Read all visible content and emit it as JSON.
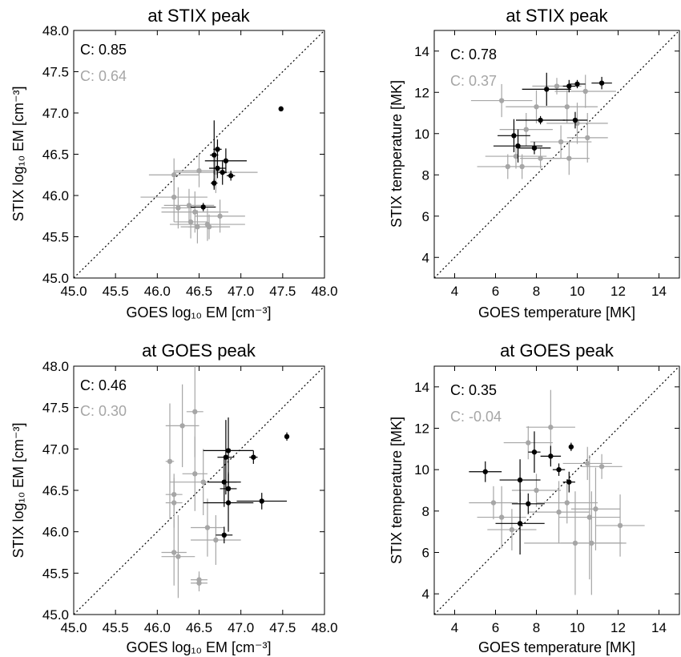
{
  "chart_data": [
    {
      "type": "scatter",
      "title": "at STIX peak",
      "xlabel": "GOES log₁₀ EM [cm⁻³]",
      "ylabel": "STIX log₁₀ EM [cm⁻³]",
      "xlim": [
        45.0,
        48.0
      ],
      "ylim": [
        45.0,
        48.0
      ],
      "xticks": [
        "45.0",
        "45.5",
        "46.0",
        "46.5",
        "47.0",
        "47.5",
        "48.0"
      ],
      "yticks": [
        "45.0",
        "45.5",
        "46.0",
        "46.5",
        "47.0",
        "47.5",
        "48.0"
      ],
      "annotations": [
        {
          "text": "C: 0.85",
          "color": "#000000"
        },
        {
          "text": "C: 0.64",
          "color": "#a6a6a6"
        }
      ],
      "diagonal": true,
      "series": [
        {
          "color": "#000000",
          "points": [
            {
              "x": 47.48,
              "y": 47.05,
              "xerr": 0.02,
              "yerr": 0.03
            },
            {
              "x": 46.72,
              "y": 46.56,
              "xerr": 0.05,
              "yerr": 0.12
            },
            {
              "x": 46.68,
              "y": 46.49,
              "xerr": 0.05,
              "yerr": 0.42
            },
            {
              "x": 46.82,
              "y": 46.42,
              "xerr": 0.25,
              "yerr": 0.15
            },
            {
              "x": 46.72,
              "y": 46.33,
              "xerr": 0.1,
              "yerr": 0.12
            },
            {
              "x": 46.88,
              "y": 46.24,
              "xerr": 0.05,
              "yerr": 0.06
            },
            {
              "x": 46.78,
              "y": 46.28,
              "xerr": 0.05,
              "yerr": 0.15
            },
            {
              "x": 46.68,
              "y": 46.15,
              "xerr": 0.04,
              "yerr": 0.05
            },
            {
              "x": 46.55,
              "y": 45.86,
              "xerr": 0.15,
              "yerr": 0.05
            }
          ]
        },
        {
          "color": "#a6a6a6",
          "points": [
            {
              "x": 46.5,
              "y": 46.3,
              "xerr": 0.3,
              "yerr": 0.2
            },
            {
              "x": 46.7,
              "y": 46.28,
              "xerr": 0.5,
              "yerr": 0.25
            },
            {
              "x": 46.2,
              "y": 46.25,
              "xerr": 0.3,
              "yerr": 0.2
            },
            {
              "x": 46.2,
              "y": 45.98,
              "xerr": 0.4,
              "yerr": 0.3
            },
            {
              "x": 46.38,
              "y": 45.88,
              "xerr": 0.3,
              "yerr": 0.2
            },
            {
              "x": 46.25,
              "y": 45.85,
              "xerr": 0.2,
              "yerr": 0.25
            },
            {
              "x": 46.45,
              "y": 45.8,
              "xerr": 0.4,
              "yerr": 0.25
            },
            {
              "x": 46.75,
              "y": 45.75,
              "xerr": 0.3,
              "yerr": 0.2
            },
            {
              "x": 46.4,
              "y": 45.68,
              "xerr": 0.2,
              "yerr": 0.2
            },
            {
              "x": 46.6,
              "y": 45.65,
              "xerr": 0.45,
              "yerr": 0.2
            },
            {
              "x": 46.48,
              "y": 45.62,
              "xerr": 0.2,
              "yerr": 0.2
            },
            {
              "x": 46.62,
              "y": 45.62,
              "xerr": 0.25,
              "yerr": 0.15
            }
          ]
        }
      ]
    },
    {
      "type": "scatter",
      "title": "at STIX peak",
      "xlabel": "GOES temperature [MK]",
      "ylabel": "STIX temperature [MK]",
      "xlim": [
        3.0,
        15.0
      ],
      "ylim": [
        3.0,
        15.0
      ],
      "xticks": [
        "4",
        "6",
        "8",
        "10",
        "12",
        "14"
      ],
      "yticks": [
        "4",
        "6",
        "8",
        "10",
        "12",
        "14"
      ],
      "annotations": [
        {
          "text": "C: 0.78",
          "color": "#000000"
        },
        {
          "text": "C: 0.37",
          "color": "#a6a6a6"
        }
      ],
      "diagonal": true,
      "series": [
        {
          "color": "#000000",
          "points": [
            {
              "x": 11.2,
              "y": 12.45,
              "xerr": 0.5,
              "yerr": 0.3
            },
            {
              "x": 10.0,
              "y": 12.4,
              "xerr": 0.4,
              "yerr": 0.2
            },
            {
              "x": 9.6,
              "y": 12.3,
              "xerr": 0.3,
              "yerr": 0.3
            },
            {
              "x": 8.5,
              "y": 12.15,
              "xerr": 1.2,
              "yerr": 0.8
            },
            {
              "x": 8.2,
              "y": 10.65,
              "xerr": 1.2,
              "yerr": 0.2
            },
            {
              "x": 9.9,
              "y": 10.65,
              "xerr": 0.6,
              "yerr": 0.4
            },
            {
              "x": 6.9,
              "y": 9.9,
              "xerr": 0.8,
              "yerr": 0.8
            },
            {
              "x": 7.1,
              "y": 9.4,
              "xerr": 1.2,
              "yerr": 0.8
            },
            {
              "x": 7.9,
              "y": 9.3,
              "xerr": 0.8,
              "yerr": 0.3
            }
          ]
        },
        {
          "color": "#a6a6a6",
          "points": [
            {
              "x": 9.0,
              "y": 12.3,
              "xerr": 1.2,
              "yerr": 0.4
            },
            {
              "x": 10.4,
              "y": 12.05,
              "xerr": 1.5,
              "yerr": 0.8
            },
            {
              "x": 6.3,
              "y": 11.6,
              "xerr": 1.5,
              "yerr": 0.8
            },
            {
              "x": 8.0,
              "y": 11.3,
              "xerr": 1.5,
              "yerr": 0.8
            },
            {
              "x": 9.5,
              "y": 11.3,
              "xerr": 1.5,
              "yerr": 0.8
            },
            {
              "x": 7.5,
              "y": 10.2,
              "xerr": 1.3,
              "yerr": 0.8
            },
            {
              "x": 9.2,
              "y": 9.6,
              "xerr": 1.5,
              "yerr": 0.8
            },
            {
              "x": 10.5,
              "y": 9.8,
              "xerr": 1.0,
              "yerr": 1.2
            },
            {
              "x": 7.0,
              "y": 8.9,
              "xerr": 1.5,
              "yerr": 0.6
            },
            {
              "x": 8.2,
              "y": 8.8,
              "xerr": 1.0,
              "yerr": 0.5
            },
            {
              "x": 9.6,
              "y": 8.8,
              "xerr": 1.0,
              "yerr": 0.8
            },
            {
              "x": 6.6,
              "y": 8.4,
              "xerr": 1.5,
              "yerr": 0.6
            },
            {
              "x": 7.3,
              "y": 8.4,
              "xerr": 1.0,
              "yerr": 0.6
            },
            {
              "x": 10.0,
              "y": 10.5,
              "xerr": 1.5,
              "yerr": 1.0
            }
          ]
        }
      ]
    },
    {
      "type": "scatter",
      "title": "at GOES peak",
      "xlabel": "GOES log₁₀ EM [cm⁻³]",
      "ylabel": "STIX log₁₀ EM [cm⁻³]",
      "xlim": [
        45.0,
        48.0
      ],
      "ylim": [
        45.0,
        48.0
      ],
      "xticks": [
        "45.0",
        "45.5",
        "46.0",
        "46.5",
        "47.0",
        "47.5",
        "48.0"
      ],
      "yticks": [
        "45.0",
        "45.5",
        "46.0",
        "46.5",
        "47.0",
        "47.5",
        "48.0"
      ],
      "annotations": [
        {
          "text": "C: 0.46",
          "color": "#000000"
        },
        {
          "text": "C: 0.30",
          "color": "#a6a6a6"
        }
      ],
      "diagonal": true,
      "series": [
        {
          "color": "#000000",
          "points": [
            {
              "x": 47.55,
              "y": 47.15,
              "xerr": 0.02,
              "yerr": 0.05
            },
            {
              "x": 47.15,
              "y": 46.9,
              "xerr": 0.05,
              "yerr": 0.08
            },
            {
              "x": 46.85,
              "y": 46.98,
              "xerr": 0.3,
              "yerr": 0.4
            },
            {
              "x": 46.82,
              "y": 46.9,
              "xerr": 0.1,
              "yerr": 0.45
            },
            {
              "x": 46.8,
              "y": 46.6,
              "xerr": 0.2,
              "yerr": 0.3
            },
            {
              "x": 46.85,
              "y": 46.52,
              "xerr": 0.1,
              "yerr": 0.2
            },
            {
              "x": 47.25,
              "y": 46.37,
              "xerr": 0.3,
              "yerr": 0.1
            },
            {
              "x": 46.85,
              "y": 46.35,
              "xerr": 0.3,
              "yerr": 0.35
            },
            {
              "x": 46.8,
              "y": 45.96,
              "xerr": 0.1,
              "yerr": 0.1
            }
          ]
        },
        {
          "color": "#a6a6a6",
          "points": [
            {
              "x": 46.45,
              "y": 47.45,
              "xerr": 0.1,
              "yerr": 0.55
            },
            {
              "x": 46.3,
              "y": 47.28,
              "xerr": 0.2,
              "yerr": 0.5
            },
            {
              "x": 46.15,
              "y": 46.85,
              "xerr": 0.05,
              "yerr": 0.7
            },
            {
              "x": 46.45,
              "y": 46.7,
              "xerr": 0.15,
              "yerr": 0.45
            },
            {
              "x": 46.55,
              "y": 46.6,
              "xerr": 0.4,
              "yerr": 0.4
            },
            {
              "x": 46.2,
              "y": 46.45,
              "xerr": 0.1,
              "yerr": 0.25
            },
            {
              "x": 46.2,
              "y": 46.35,
              "xerr": 0.1,
              "yerr": 0.3
            },
            {
              "x": 46.6,
              "y": 46.05,
              "xerr": 0.2,
              "yerr": 0.35
            },
            {
              "x": 46.7,
              "y": 45.9,
              "xerr": 0.3,
              "yerr": 0.3
            },
            {
              "x": 46.2,
              "y": 45.75,
              "xerr": 0.15,
              "yerr": 0.4
            },
            {
              "x": 46.25,
              "y": 45.7,
              "xerr": 0.2,
              "yerr": 0.5
            },
            {
              "x": 46.5,
              "y": 45.42,
              "xerr": 0.1,
              "yerr": 0.1
            },
            {
              "x": 46.5,
              "y": 45.38,
              "xerr": 0.1,
              "yerr": 0.1
            }
          ]
        }
      ]
    },
    {
      "type": "scatter",
      "title": "at GOES peak",
      "xlabel": "GOES temperature [MK]",
      "ylabel": "STIX temperature [MK]",
      "xlim": [
        3.0,
        15.0
      ],
      "ylim": [
        3.0,
        15.0
      ],
      "xticks": [
        "4",
        "6",
        "8",
        "10",
        "12",
        "14"
      ],
      "yticks": [
        "4",
        "6",
        "8",
        "10",
        "12",
        "14"
      ],
      "annotations": [
        {
          "text": "C: 0.35",
          "color": "#000000"
        },
        {
          "text": "C: -0.04",
          "color": "#a6a6a6"
        }
      ],
      "diagonal": true,
      "series": [
        {
          "color": "#000000",
          "points": [
            {
              "x": 9.7,
              "y": 11.1,
              "xerr": 0.1,
              "yerr": 0.2
            },
            {
              "x": 7.9,
              "y": 10.85,
              "xerr": 0.3,
              "yerr": 1.0
            },
            {
              "x": 8.7,
              "y": 10.65,
              "xerr": 0.5,
              "yerr": 0.5
            },
            {
              "x": 9.1,
              "y": 10.0,
              "xerr": 0.3,
              "yerr": 0.3
            },
            {
              "x": 5.5,
              "y": 9.9,
              "xerr": 0.8,
              "yerr": 0.5
            },
            {
              "x": 7.2,
              "y": 9.5,
              "xerr": 1.0,
              "yerr": 1.0
            },
            {
              "x": 9.6,
              "y": 9.4,
              "xerr": 0.3,
              "yerr": 0.5
            },
            {
              "x": 7.6,
              "y": 8.35,
              "xerr": 0.8,
              "yerr": 0.5
            },
            {
              "x": 7.2,
              "y": 7.4,
              "xerr": 1.2,
              "yerr": 1.5
            }
          ]
        },
        {
          "color": "#a6a6a6",
          "points": [
            {
              "x": 8.7,
              "y": 12.05,
              "xerr": 1.2,
              "yerr": 1.8
            },
            {
              "x": 7.6,
              "y": 11.3,
              "xerr": 1.2,
              "yerr": 0.8
            },
            {
              "x": 10.5,
              "y": 10.3,
              "xerr": 1.2,
              "yerr": 0.8
            },
            {
              "x": 11.2,
              "y": 10.15,
              "xerr": 1.0,
              "yerr": 0.6
            },
            {
              "x": 8.0,
              "y": 9.0,
              "xerr": 1.2,
              "yerr": 0.8
            },
            {
              "x": 5.9,
              "y": 8.4,
              "xerr": 1.2,
              "yerr": 0.8
            },
            {
              "x": 9.5,
              "y": 8.4,
              "xerr": 1.5,
              "yerr": 1.0
            },
            {
              "x": 10.9,
              "y": 8.1,
              "xerr": 1.2,
              "yerr": 2.0
            },
            {
              "x": 9.1,
              "y": 7.95,
              "xerr": 1.5,
              "yerr": 1.5
            },
            {
              "x": 6.3,
              "y": 7.7,
              "xerr": 1.2,
              "yerr": 1.5
            },
            {
              "x": 10.6,
              "y": 7.7,
              "xerr": 1.5,
              "yerr": 3.0
            },
            {
              "x": 12.1,
              "y": 7.3,
              "xerr": 1.2,
              "yerr": 1.5
            },
            {
              "x": 6.8,
              "y": 7.1,
              "xerr": 1.2,
              "yerr": 1.0
            },
            {
              "x": 9.9,
              "y": 6.45,
              "xerr": 2.5,
              "yerr": 2.5
            },
            {
              "x": 10.7,
              "y": 6.45,
              "xerr": 1.5,
              "yerr": 2.5
            }
          ]
        }
      ]
    }
  ]
}
